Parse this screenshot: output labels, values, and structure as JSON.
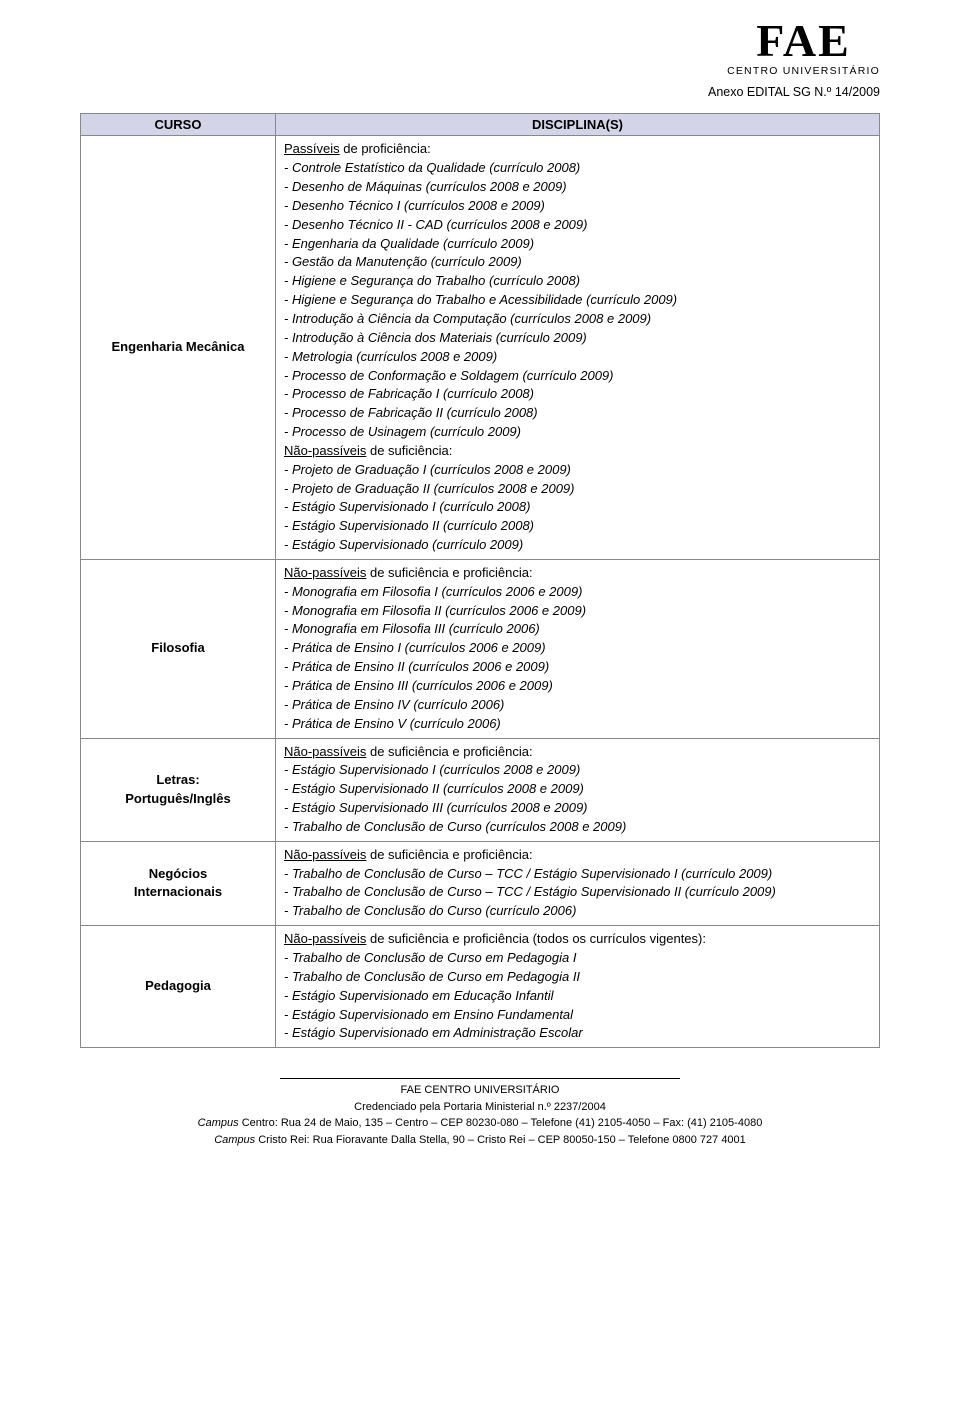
{
  "header": {
    "logo_main": "FAE",
    "logo_sub": "CENTRO UNIVERSITÁRIO",
    "anexo": "Anexo EDITAL SG N.º 14/2009"
  },
  "table": {
    "col_curso": "CURSO",
    "col_disc": "DISCIPLINA(S)"
  },
  "rows": {
    "eng": {
      "course": "Engenharia Mecânica",
      "heading1": "Passíveis",
      "heading1_rest": " de proficiência:",
      "items1": [
        "- Controle Estatístico da Qualidade (currículo 2008)",
        "- Desenho de Máquinas (currículos 2008 e 2009)",
        "- Desenho Técnico I (currículos 2008 e 2009)",
        "- Desenho Técnico II - CAD (currículos 2008 e 2009)",
        "- Engenharia da Qualidade (currículo 2009)",
        "- Gestão da Manutenção (currículo 2009)",
        "- Higiene e Segurança do Trabalho (currículo 2008)",
        "- Higiene e Segurança do Trabalho e Acessibilidade (currículo 2009)",
        "- Introdução à Ciência da Computação (currículos 2008 e 2009)",
        "- Introdução à Ciência dos Materiais (currículo 2009)",
        "- Metrologia (currículos 2008 e 2009)",
        "- Processo de Conformação e Soldagem (currículo 2009)",
        "- Processo de Fabricação I (currículo 2008)",
        "- Processo de Fabricação II (currículo 2008)",
        "- Processo de Usinagem (currículo 2009)"
      ],
      "heading2": "Não-passíveis",
      "heading2_rest": " de suficiência:",
      "items2": [
        "- Projeto de Graduação I (currículos 2008 e 2009)",
        "- Projeto de Graduação II (currículos 2008 e 2009)",
        "- Estágio Supervisionado I (currículo 2008)",
        "- Estágio Supervisionado II (currículo 2008)",
        "- Estágio Supervisionado (currículo 2009)"
      ]
    },
    "fil": {
      "course": "Filosofia",
      "heading": "Não-passíveis",
      "heading_rest": " de suficiência e proficiência:",
      "items": [
        "- Monografia em Filosofia I (currículos 2006 e 2009)",
        "- Monografia em Filosofia II (currículos 2006 e 2009)",
        "- Monografia em Filosofia III (currículo 2006)",
        "- Prática de Ensino I (currículos 2006 e 2009)",
        "- Prática de Ensino II (currículos 2006 e 2009)",
        "- Prática de Ensino III (currículos 2006 e 2009)",
        "- Prática de Ensino IV (currículo 2006)",
        "- Prática de Ensino V (currículo 2006)"
      ]
    },
    "let": {
      "course": "Letras:\nPortuguês/Inglês",
      "heading": "Não-passíveis",
      "heading_rest": " de suficiência e proficiência:",
      "items": [
        "- Estágio Supervisionado I (currículos 2008 e 2009)",
        "- Estágio Supervisionado II (currículos 2008 e 2009)",
        "- Estágio Supervisionado III (currículos 2008 e 2009)",
        "- Trabalho de Conclusão de Curso (currículos 2008 e 2009)"
      ]
    },
    "neg": {
      "course": "Negócios\nInternacionais",
      "heading": "Não-passíveis",
      "heading_rest": " de suficiência e proficiência:",
      "items": [
        "- Trabalho de Conclusão de Curso – TCC / Estágio Supervisionado I (currículo 2009)",
        "- Trabalho de Conclusão de Curso – TCC / Estágio Supervisionado II (currículo 2009)",
        "- Trabalho de Conclusão do Curso (currículo 2006)"
      ]
    },
    "ped": {
      "course": "Pedagogia",
      "heading": "Não-passíveis",
      "heading_rest": " de suficiência e proficiência (todos os currículos vigentes):",
      "items": [
        "- Trabalho de Conclusão de Curso em Pedagogia I",
        "- Trabalho de Conclusão de Curso em Pedagogia II",
        "- Estágio Supervisionado em Educação Infantil",
        "- Estágio Supervisionado em Ensino Fundamental",
        "- Estágio Supervisionado em Administração Escolar"
      ]
    }
  },
  "footer": {
    "l1": "FAE CENTRO UNIVERSITÁRIO",
    "l2": "Credenciado pela Portaria Ministerial n.º 2237/2004",
    "l3_a": "Campus",
    "l3_b": " Centro: Rua 24 de Maio, 135 – Centro – CEP 80230-080 – Telefone (41) 2105-4050 – Fax: (41) 2105-4080",
    "l4_a": "Campus",
    "l4_b": " Cristo Rei: Rua Fioravante Dalla Stella, 90 – Cristo Rei – CEP 80050-150 – Telefone 0800 727 4001"
  }
}
